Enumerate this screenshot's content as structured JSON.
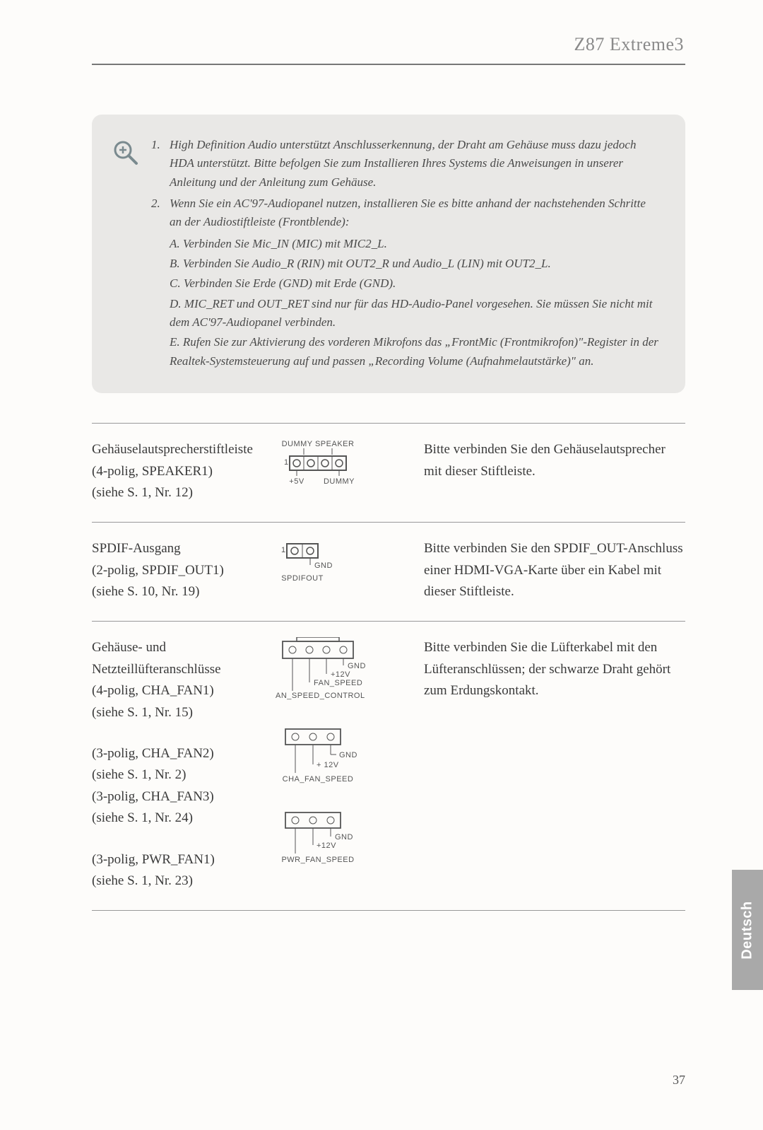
{
  "header": {
    "title": "Z87 Extreme3"
  },
  "note": {
    "items": [
      {
        "num": "1",
        "text": "High Definition Audio unterstützt Anschlusserkennung, der Draht am Gehäuse muss dazu jedoch HDA unterstützt. Bitte befolgen Sie zum Installieren Ihres Systems die Anweisungen in unserer Anleitung und der Anleitung zum Gehäuse."
      },
      {
        "num": "2",
        "text": "Wenn Sie ein AC'97-Audiopanel nutzen, installieren Sie es bitte anhand der nachstehenden Schritte an der Audiostiftleiste (Frontblende):",
        "sub": [
          "A. Verbinden Sie Mic_IN (MIC) mit MIC2_L.",
          "B. Verbinden Sie Audio_R (RIN) mit OUT2_R und Audio_L (LIN) mit OUT2_L.",
          "C. Verbinden Sie Erde (GND) mit Erde (GND).",
          "D. MIC_RET und OUT_RET sind nur für das HD-Audio-Panel vorgesehen. Sie müssen Sie nicht mit dem AC'97-Audiopanel verbinden.",
          "E. Rufen Sie zur Aktivierung des vorderen Mikrofons das „FrontMic (Frontmikrofon)\"-Register in der Realtek-Systemsteuerung auf und passen „Recording Volume (Aufnahmelautstärke)\" an."
        ]
      }
    ]
  },
  "sections": [
    {
      "left": [
        {
          "lines": [
            "Gehäuselautsprecherstiftleiste",
            "(4-polig, SPEAKER1)",
            "(siehe S. 1, Nr. 12)"
          ]
        }
      ],
      "diagrams": [
        "speaker"
      ],
      "right": "Bitte verbinden Sie den Gehäuselautsprecher mit dieser Stiftleiste."
    },
    {
      "left": [
        {
          "lines": [
            "SPDIF-Ausgang",
            "(2-polig, SPDIF_OUT1)",
            "(siehe S. 10, Nr. 19)"
          ]
        }
      ],
      "diagrams": [
        "spdif"
      ],
      "right": "Bitte verbinden Sie den SPDIF_OUT-Anschluss einer HDMI-VGA-Karte über ein Kabel mit dieser Stiftleiste."
    },
    {
      "left": [
        {
          "lines": [
            "Gehäuse- und",
            "Netzteillüfteranschlüsse",
            "(4-polig, CHA_FAN1)",
            "(siehe S. 1, Nr. 15)"
          ]
        },
        {
          "lines": [
            "(3-polig, CHA_FAN2)",
            "(siehe S. 1, Nr. 2)",
            "(3-polig, CHA_FAN3)",
            "(siehe S. 1, Nr. 24)"
          ]
        },
        {
          "lines": [
            "(3-polig, PWR_FAN1)",
            "(siehe S. 1, Nr. 23)"
          ]
        }
      ],
      "diagrams": [
        "fan4",
        "fan3_cha",
        "fan3_pwr"
      ],
      "right": "Bitte verbinden Sie die Lüfterkabel mit den Lüfteranschlüssen; der schwarze Draht gehört zum Erdungskontakt."
    }
  ],
  "diagram_labels": {
    "speaker": {
      "top": "DUMMY SPEAKER",
      "bl": "+5V",
      "br": "DUMMY",
      "pin1": "1"
    },
    "spdif": {
      "gnd": "GND",
      "out": "SPDIFOUT",
      "pin1": "1"
    },
    "fan4": {
      "gnd": "GND",
      "v12": "+12V",
      "speed": "FAN_SPEED",
      "ctrl": "FAN_SPEED_CONTROL"
    },
    "fan3_cha": {
      "gnd": "GND",
      "v12": "+ 12V",
      "speed": "CHA_FAN_SPEED"
    },
    "fan3_pwr": {
      "gnd": "GND",
      "v12": "+12V",
      "speed": "PWR_FAN_SPEED"
    }
  },
  "lang_tab": "Deutsch",
  "page_number": "37"
}
